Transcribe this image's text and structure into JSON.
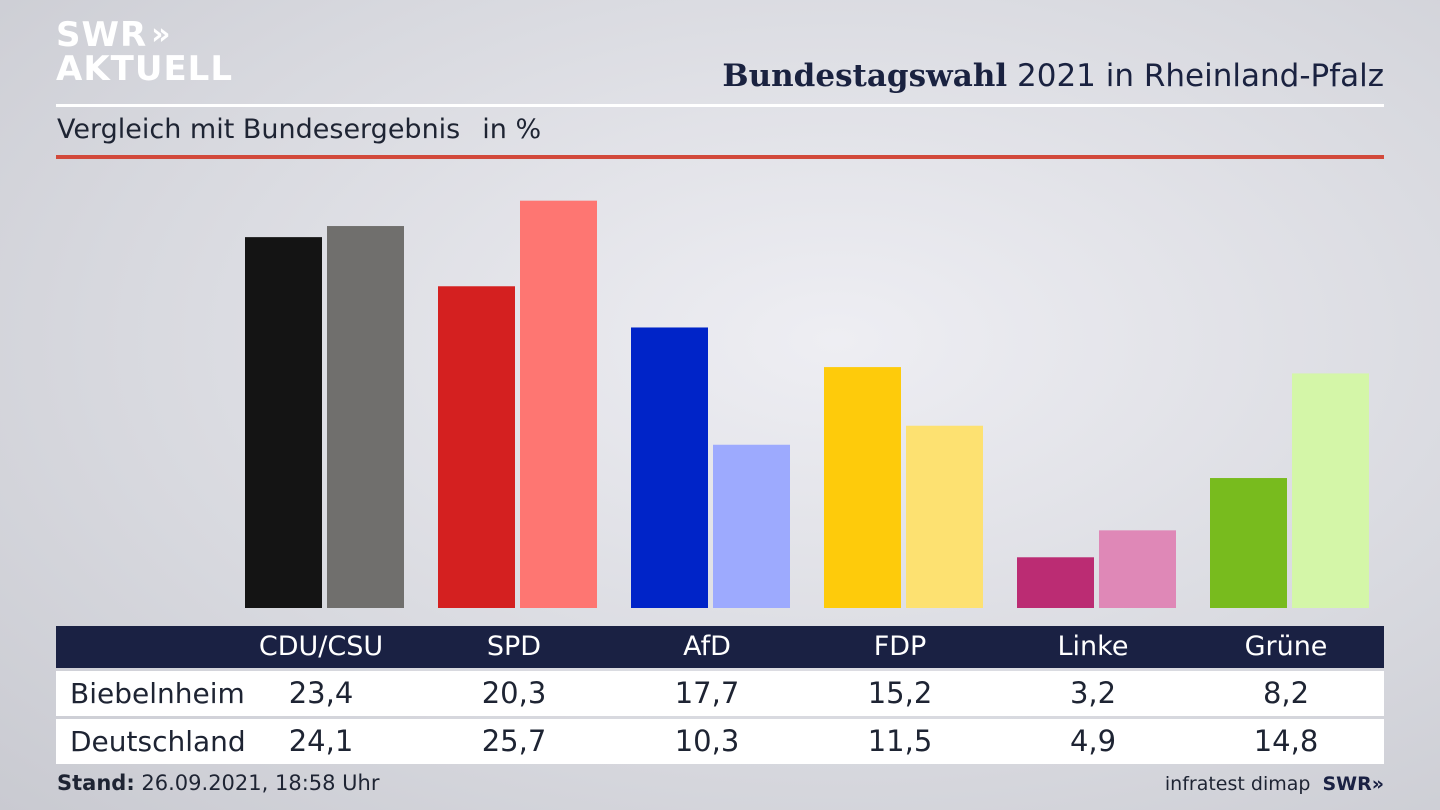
{
  "header": {
    "logo_line1": "SWR",
    "logo_line2": "AKTUELL",
    "title_bold": "Bundestagswahl",
    "title_rest": " 2021 in Rheinland-Pfalz",
    "subtitle": "Vergleich mit Bundesergebnis",
    "unit": "in %"
  },
  "chart_data": {
    "type": "bar",
    "categories": [
      "CDU/CSU",
      "SPD",
      "AfD",
      "FDP",
      "Linke",
      "Grüne"
    ],
    "series": [
      {
        "name": "Biebelnheim",
        "values": [
          23.4,
          20.3,
          17.7,
          15.2,
          3.2,
          8.2
        ]
      },
      {
        "name": "Deutschland",
        "values": [
          24.1,
          25.7,
          10.3,
          11.5,
          4.9,
          14.8
        ]
      }
    ],
    "colors": {
      "Biebelnheim": [
        "#141414",
        "#d42020",
        "#0024c8",
        "#fecb0b",
        "#bb2c73",
        "#78bb1e"
      ],
      "Deutschland": [
        "#706f6d",
        "#fe7672",
        "#9daafe",
        "#fde171",
        "#df88b7",
        "#d4f6a8"
      ]
    },
    "ylim": [
      0,
      26.5
    ],
    "grid": false,
    "legend": "table-below"
  },
  "table": {
    "headers": [
      "CDU/CSU",
      "SPD",
      "AfD",
      "FDP",
      "Linke",
      "Grüne"
    ],
    "rows": [
      {
        "label": "Biebelnheim",
        "values": [
          "23,4",
          "20,3",
          "17,7",
          "15,2",
          "3,2",
          "8,2"
        ]
      },
      {
        "label": "Deutschland",
        "values": [
          "24,1",
          "25,7",
          "10,3",
          "11,5",
          "4,9",
          "14,8"
        ]
      }
    ]
  },
  "footer": {
    "stand_label": "Stand:",
    "stand_value": " 26.09.2021, 18:58 Uhr",
    "source": "infratest dimap",
    "brand": "SWR"
  }
}
